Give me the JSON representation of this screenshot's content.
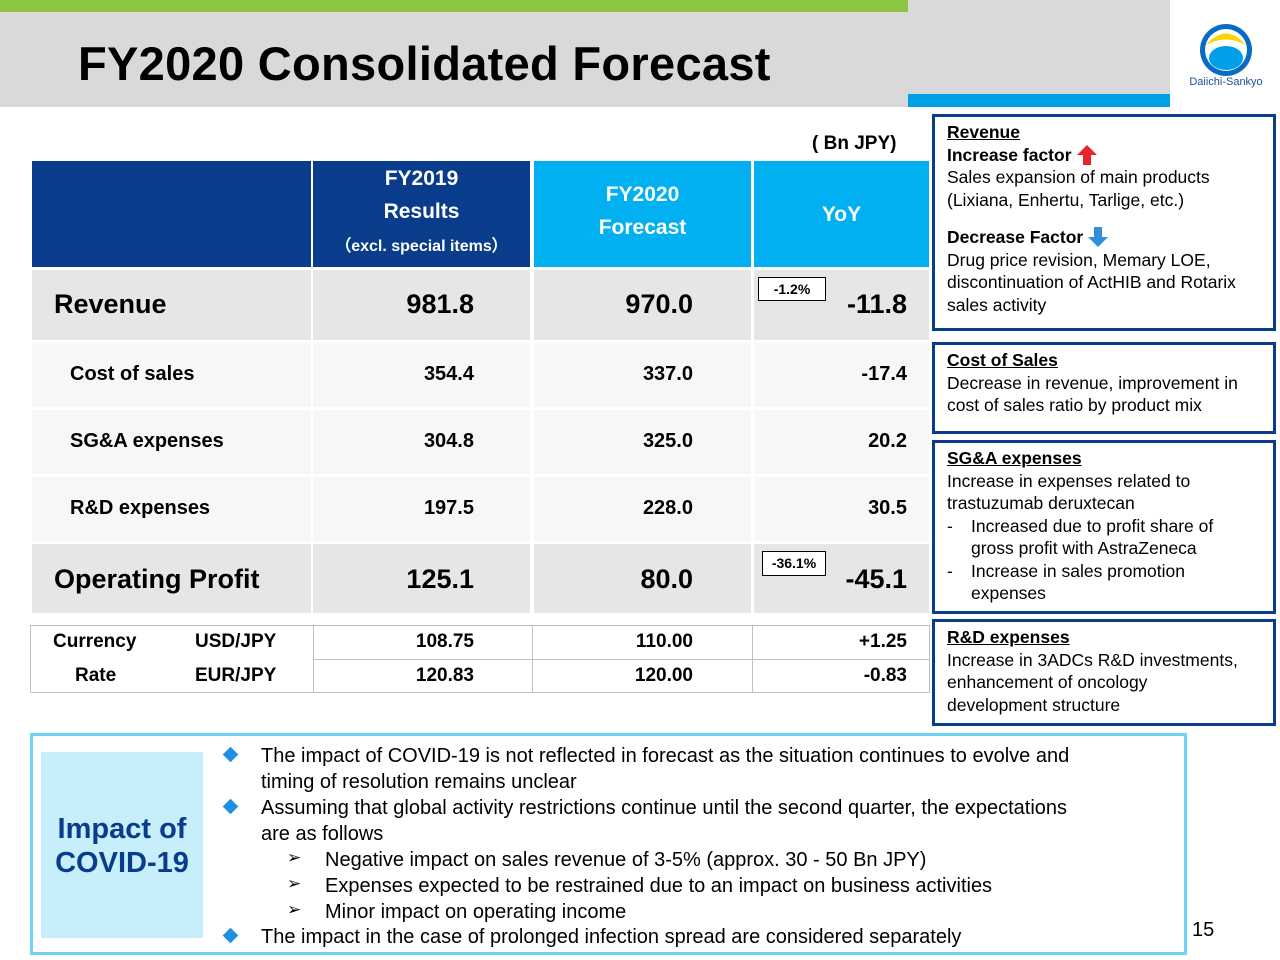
{
  "header": {
    "title": "FY2020 Consolidated Forecast",
    "logo_text": "Daiichi-Sankyo",
    "accent_green": "#8cc63f",
    "accent_blue": "#00a0e9"
  },
  "unit": "( Bn JPY)",
  "table": {
    "col_fy2019": [
      "FY2019",
      "Results",
      "（excl. special items）"
    ],
    "col_fy2020": [
      "FY2020",
      "Forecast"
    ],
    "col_yoy": "YoY",
    "rows": [
      {
        "label": "Revenue",
        "fy2019": "981.8",
        "fy2020": "970.0",
        "yoy": "-11.8",
        "pct": "-1.2%"
      },
      {
        "label": "Cost of sales",
        "fy2019": "354.4",
        "fy2020": "337.0",
        "yoy": "-17.4"
      },
      {
        "label": "SG&A expenses",
        "fy2019": "304.8",
        "fy2020": "325.0",
        "yoy": "20.2"
      },
      {
        "label": "R&D expenses",
        "fy2019": "197.5",
        "fy2020": "228.0",
        "yoy": "30.5"
      },
      {
        "label": "Operating Profit",
        "fy2019": "125.1",
        "fy2020": "80.0",
        "yoy": "-45.1",
        "pct": "-36.1%"
      }
    ],
    "currency": {
      "label1": "Currency",
      "label2": "Rate",
      "rates": [
        {
          "pair": "USD/JPY",
          "fy2019": "108.75",
          "fy2020": "110.00",
          "yoy": "+1.25"
        },
        {
          "pair": "EUR/JPY",
          "fy2019": "120.83",
          "fy2020": "120.00",
          "yoy": "-0.83"
        }
      ]
    }
  },
  "side": {
    "revenue": {
      "head": "Revenue",
      "increase_label": "Increase factor",
      "increase_text": [
        "Sales expansion of main products",
        "(Lixiana, Enhertu, Tarlige, etc.)"
      ],
      "decrease_label": "Decrease Factor",
      "decrease_text": [
        "Drug price revision, Memary LOE,",
        "discontinuation of ActHIB and Rotarix",
        "sales activity"
      ]
    },
    "cost": {
      "head": "Cost of Sales",
      "text": [
        "Decrease in revenue, improvement in",
        "cost of sales ratio by product mix"
      ]
    },
    "sga": {
      "head": "SG&A expenses",
      "text": [
        "Increase in expenses related to",
        "trastuzumab deruxtecan"
      ],
      "dash1": [
        "Increased  due to profit share of",
        "gross profit with AstraZeneca"
      ],
      "dash2": [
        "Increase in sales promotion",
        "expenses"
      ],
      "dash_char": "-"
    },
    "rd": {
      "head": "R&D expenses",
      "text": [
        "Increase in 3ADCs R&D investments,",
        "enhancement of oncology",
        "development structure"
      ]
    }
  },
  "covid": {
    "label": [
      "Impact of",
      "COVID-19"
    ],
    "b1": [
      "The impact of COVID-19 is not reflected in forecast as the situation continues to evolve and",
      "timing of resolution remains unclear"
    ],
    "b2": [
      "Assuming that global activity restrictions continue until the second quarter, the expectations",
      "are as follows"
    ],
    "s1": "Negative impact on sales revenue of 3-5% (approx. 30 - 50 Bn JPY)",
    "s2": "Expenses expected to be restrained due to an impact on business activities",
    "s3": "Minor impact on operating income",
    "b3": "The impact in the case of prolonged infection spread are considered separately",
    "arrow_glyph": "➢"
  },
  "page_number": "15"
}
